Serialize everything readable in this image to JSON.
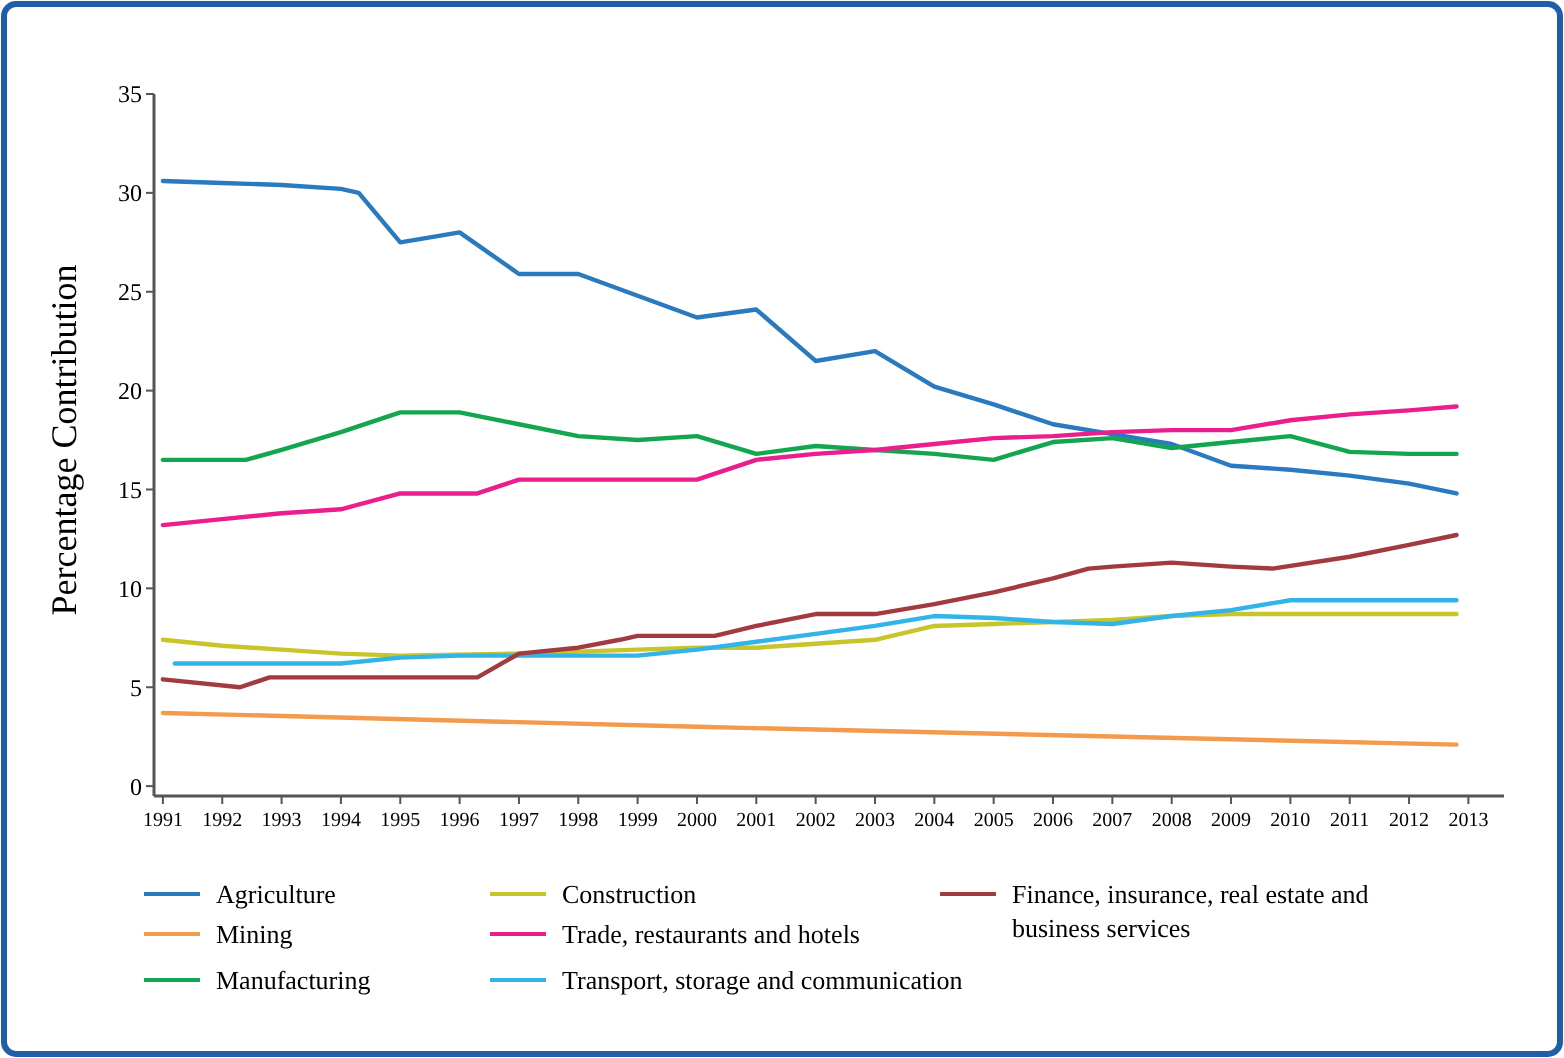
{
  "chart_data": {
    "type": "line",
    "ylabel": "Percentage Contribution",
    "xlim": [
      1990.85,
      2013.6
    ],
    "xticks": [
      1991,
      1992,
      1993,
      1994,
      1995,
      1996,
      1997,
      1998,
      1999,
      2000,
      2001,
      2002,
      2003,
      2004,
      2005,
      2006,
      2007,
      2008,
      2009,
      2010,
      2011,
      2012,
      2013
    ],
    "ylim": [
      -0.5,
      35
    ],
    "yticks": [
      0,
      5,
      10,
      15,
      20,
      25,
      30,
      35
    ],
    "grid": false,
    "legend": "bottom",
    "line_style": "solid",
    "marker": "none",
    "series": [
      {
        "name": "Agriculture",
        "color": "#2a7abf",
        "x": [
          1991,
          1992,
          1993,
          1994,
          1994.3,
          1995,
          1996,
          1997,
          1998,
          1999,
          2000,
          2001,
          2002,
          2003,
          2004,
          2005,
          2006,
          2007,
          2008,
          2009,
          2010,
          2011,
          2012,
          2012.8
        ],
        "values": [
          30.6,
          30.5,
          30.4,
          30.2,
          30.0,
          27.5,
          28.0,
          25.9,
          25.9,
          24.8,
          23.7,
          24.1,
          21.5,
          22.0,
          20.2,
          19.3,
          18.3,
          17.8,
          17.3,
          16.2,
          16.0,
          15.7,
          15.3,
          14.8
        ]
      },
      {
        "name": "Mining",
        "color": "#f39a4c",
        "x": [
          1991,
          2000,
          2012.8
        ],
        "values": [
          3.7,
          3.0,
          2.1
        ]
      },
      {
        "name": "Manufacturing",
        "color": "#14a550",
        "x": [
          1991,
          1992.4,
          1993,
          1994,
          1995,
          1996,
          1997,
          1998,
          1999,
          2000,
          2001,
          2002,
          2003,
          2004,
          2005,
          2006,
          2007,
          2008,
          2009,
          2010,
          2011,
          2012,
          2012.8
        ],
        "values": [
          16.5,
          16.5,
          17.0,
          17.9,
          18.9,
          18.9,
          18.3,
          17.7,
          17.5,
          17.7,
          16.8,
          17.2,
          17.0,
          16.8,
          16.5,
          17.4,
          17.6,
          17.1,
          17.4,
          17.7,
          16.9,
          16.8,
          16.8
        ]
      },
      {
        "name": "Construction",
        "color": "#c8c52a",
        "x": [
          1991,
          1992,
          1993,
          1994,
          1995,
          1997,
          1998,
          1999,
          2000,
          2001,
          2002,
          2003,
          2004,
          2005,
          2006,
          2007,
          2008,
          2009,
          2010,
          2011,
          2012,
          2012.8
        ],
        "values": [
          7.4,
          7.1,
          6.9,
          6.7,
          6.6,
          6.7,
          6.8,
          6.9,
          7.0,
          7.0,
          7.2,
          7.4,
          8.1,
          8.2,
          8.3,
          8.4,
          8.6,
          8.7,
          8.7,
          8.7,
          8.7,
          8.7
        ]
      },
      {
        "name": "Trade, restaurants and hotels",
        "color": "#ea1e8c",
        "x": [
          1991,
          1992,
          1993,
          1994,
          1995,
          1996.3,
          1997,
          1998,
          1999,
          2000,
          2001,
          2002,
          2003,
          2004,
          2005,
          2006,
          2007,
          2008,
          2009,
          2010,
          2011,
          2012,
          2012.8
        ],
        "values": [
          13.2,
          13.5,
          13.8,
          14.0,
          14.8,
          14.8,
          15.5,
          15.5,
          15.5,
          15.5,
          16.5,
          16.8,
          17.0,
          17.3,
          17.6,
          17.7,
          17.9,
          18.0,
          18.0,
          18.5,
          18.8,
          19.0,
          19.2
        ]
      },
      {
        "name": "Transport, storage and communication",
        "color": "#32b4e8",
        "x": [
          1991.2,
          1994,
          1995,
          1996,
          1997,
          1998,
          1999,
          2000,
          2001,
          2002,
          2003,
          2004,
          2005,
          2006,
          2007,
          2008,
          2009,
          2010,
          2011,
          2012,
          2012.8
        ],
        "values": [
          6.2,
          6.2,
          6.5,
          6.6,
          6.6,
          6.6,
          6.6,
          6.9,
          7.3,
          7.7,
          8.1,
          8.6,
          8.5,
          8.3,
          8.2,
          8.6,
          8.9,
          9.4,
          9.4,
          9.4,
          9.4
        ]
      },
      {
        "name": "Finance, insurance, real estate and business services",
        "color": "#a23b3f",
        "x": [
          1991,
          1992.3,
          1992.8,
          1993,
          1996.3,
          1997,
          1998,
          1998.7,
          1999,
          2000.3,
          2001,
          2002,
          2003,
          2004,
          2005,
          2006,
          2006.6,
          2007,
          2008,
          2009,
          2009.7,
          2011,
          2012,
          2012.8
        ],
        "values": [
          5.4,
          5.0,
          5.5,
          5.5,
          5.5,
          6.7,
          7.0,
          7.4,
          7.6,
          7.6,
          8.1,
          8.7,
          8.7,
          9.2,
          9.8,
          10.5,
          11.0,
          11.1,
          11.3,
          11.1,
          11.0,
          11.6,
          12.2,
          12.7
        ]
      }
    ]
  }
}
